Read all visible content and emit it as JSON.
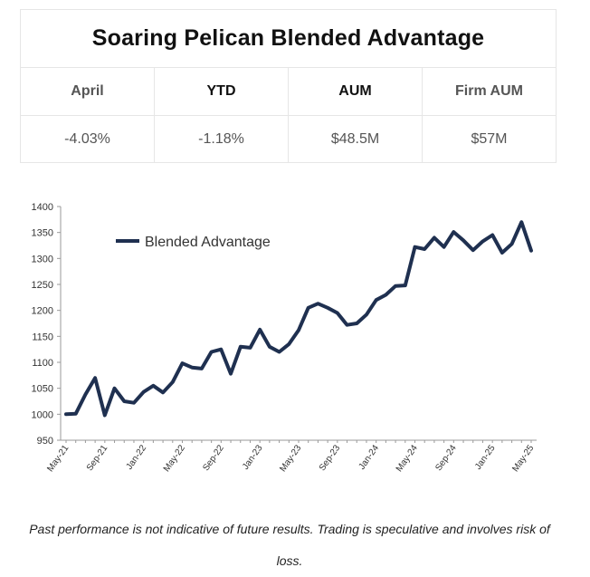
{
  "stats": {
    "title": "Soaring Pelican Blended Advantage",
    "headers": [
      "April",
      "YTD",
      "AUM",
      "Firm AUM"
    ],
    "values": [
      "-4.03%",
      "-1.18%",
      "$48.5M",
      "$57M"
    ]
  },
  "chart_data": {
    "type": "line",
    "legend": "top-left",
    "grid": false,
    "ylim": [
      950,
      1400
    ],
    "y_ticks": [
      "950",
      "1000",
      "1050",
      "1100",
      "1150",
      "1200",
      "1250",
      "1300",
      "1350",
      "1400"
    ],
    "x_tick_labels": [
      "May-21",
      "Sep-21",
      "Jan-22",
      "May-22",
      "Sep-22",
      "Jan-23",
      "May-23",
      "Sep-23",
      "Jan-24",
      "May-24",
      "Sep-24",
      "Jan-25",
      "May-25"
    ],
    "x": [
      "May-21",
      "Jun-21",
      "Jul-21",
      "Aug-21",
      "Sep-21",
      "Oct-21",
      "Nov-21",
      "Dec-21",
      "Jan-22",
      "Feb-22",
      "Mar-22",
      "Apr-22",
      "May-22",
      "Jun-22",
      "Jul-22",
      "Aug-22",
      "Sep-22",
      "Oct-22",
      "Nov-22",
      "Dec-22",
      "Jan-23",
      "Feb-23",
      "Mar-23",
      "Apr-23",
      "May-23",
      "Jun-23",
      "Jul-23",
      "Aug-23",
      "Sep-23",
      "Oct-23",
      "Nov-23",
      "Dec-23",
      "Jan-24",
      "Feb-24",
      "Mar-24",
      "Apr-24",
      "May-24",
      "Jun-24",
      "Jul-24",
      "Aug-24",
      "Sep-24",
      "Oct-24",
      "Nov-24",
      "Dec-24",
      "Jan-25",
      "Feb-25",
      "Mar-25",
      "Apr-25",
      "May-25"
    ],
    "series": [
      {
        "name": "Blended Advantage",
        "color": "#1f3050",
        "values": [
          1000,
          1001,
          1038,
          1070,
          998,
          1050,
          1025,
          1022,
          1043,
          1055,
          1042,
          1062,
          1098,
          1090,
          1088,
          1120,
          1125,
          1078,
          1130,
          1128,
          1163,
          1130,
          1120,
          1135,
          1162,
          1205,
          1213,
          1205,
          1195,
          1172,
          1175,
          1192,
          1220,
          1230,
          1247,
          1248,
          1322,
          1318,
          1340,
          1322,
          1351,
          1335,
          1316,
          1333,
          1345,
          1311,
          1328,
          1370,
          1315
        ]
      }
    ]
  },
  "footer": {
    "disclaimer": "Past performance is not indicative of future results. Trading is speculative and involves risk of loss."
  }
}
